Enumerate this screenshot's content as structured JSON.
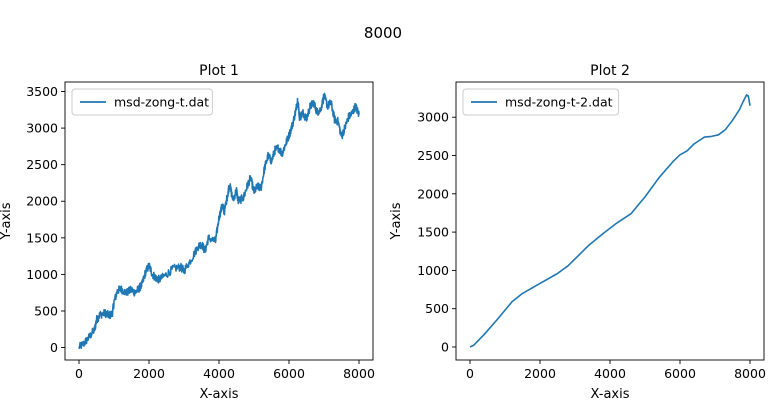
{
  "figure": {
    "suptitle": "8000"
  },
  "chart_data": [
    {
      "type": "line",
      "title": "Plot 1",
      "xlabel": "X-axis",
      "ylabel": "Y-axis",
      "xlim": [
        -400,
        8400
      ],
      "ylim": [
        -170,
        3630
      ],
      "xticks": [
        0,
        2000,
        4000,
        6000,
        8000
      ],
      "yticks": [
        0,
        500,
        1000,
        1500,
        2000,
        2500,
        3000,
        3500
      ],
      "legend_position": "upper-left",
      "color": "#1f77b4",
      "noisy": true,
      "series": [
        {
          "name": "msd-zong-t.dat",
          "x": [
            0,
            150,
            300,
            450,
            500,
            600,
            750,
            850,
            950,
            1000,
            1100,
            1200,
            1350,
            1500,
            1600,
            1700,
            1800,
            1900,
            2000,
            2100,
            2200,
            2300,
            2500,
            2700,
            2900,
            3000,
            3200,
            3400,
            3500,
            3600,
            3700,
            3900,
            4000,
            4100,
            4150,
            4250,
            4300,
            4400,
            4500,
            4550,
            4700,
            4800,
            4900,
            5000,
            5100,
            5200,
            5300,
            5400,
            5500,
            5600,
            5700,
            5800,
            5900,
            6000,
            6100,
            6200,
            6250,
            6300,
            6400,
            6500,
            6600,
            6700,
            6800,
            6900,
            7000,
            7100,
            7200,
            7300,
            7400,
            7500,
            7600,
            7700,
            7800,
            7900,
            8000
          ],
          "y": [
            0,
            60,
            150,
            250,
            380,
            450,
            470,
            440,
            460,
            620,
            780,
            800,
            750,
            790,
            750,
            800,
            860,
            1030,
            1120,
            1000,
            950,
            930,
            1000,
            1080,
            1100,
            1050,
            1200,
            1380,
            1420,
            1320,
            1500,
            1450,
            1780,
            1950,
            1850,
            2100,
            2230,
            2020,
            2150,
            2000,
            2050,
            2200,
            2320,
            2130,
            2200,
            2180,
            2450,
            2620,
            2550,
            2700,
            2730,
            2650,
            2780,
            2900,
            3050,
            3250,
            3400,
            3150,
            3200,
            3120,
            3290,
            3350,
            3220,
            3250,
            3440,
            3300,
            3350,
            3120,
            3090,
            2880,
            3010,
            3150,
            3200,
            3300,
            3180
          ]
        }
      ]
    },
    {
      "type": "line",
      "title": "Plot 2",
      "xlabel": "X-axis",
      "ylabel": "Y-axis",
      "xlim": [
        -400,
        8400
      ],
      "ylim": [
        -170,
        3460
      ],
      "xticks": [
        0,
        2000,
        4000,
        6000,
        8000
      ],
      "yticks": [
        0,
        500,
        1000,
        1500,
        2000,
        2500,
        3000
      ],
      "legend_position": "upper-left",
      "color": "#1f77b4",
      "noisy": false,
      "series": [
        {
          "name": "msd-zong-t-2.dat",
          "x": [
            0,
            100,
            400,
            800,
            1200,
            1500,
            2000,
            2500,
            2800,
            3000,
            3400,
            3800,
            4200,
            4600,
            5000,
            5400,
            5800,
            6000,
            6200,
            6400,
            6700,
            6900,
            7100,
            7300,
            7500,
            7700,
            7800,
            7900,
            7950,
            8000
          ],
          "y": [
            0,
            20,
            160,
            370,
            590,
            700,
            830,
            960,
            1060,
            1150,
            1330,
            1480,
            1620,
            1740,
            1960,
            2210,
            2420,
            2510,
            2560,
            2650,
            2740,
            2750,
            2770,
            2840,
            2960,
            3100,
            3200,
            3290,
            3280,
            3150
          ]
        }
      ]
    }
  ]
}
